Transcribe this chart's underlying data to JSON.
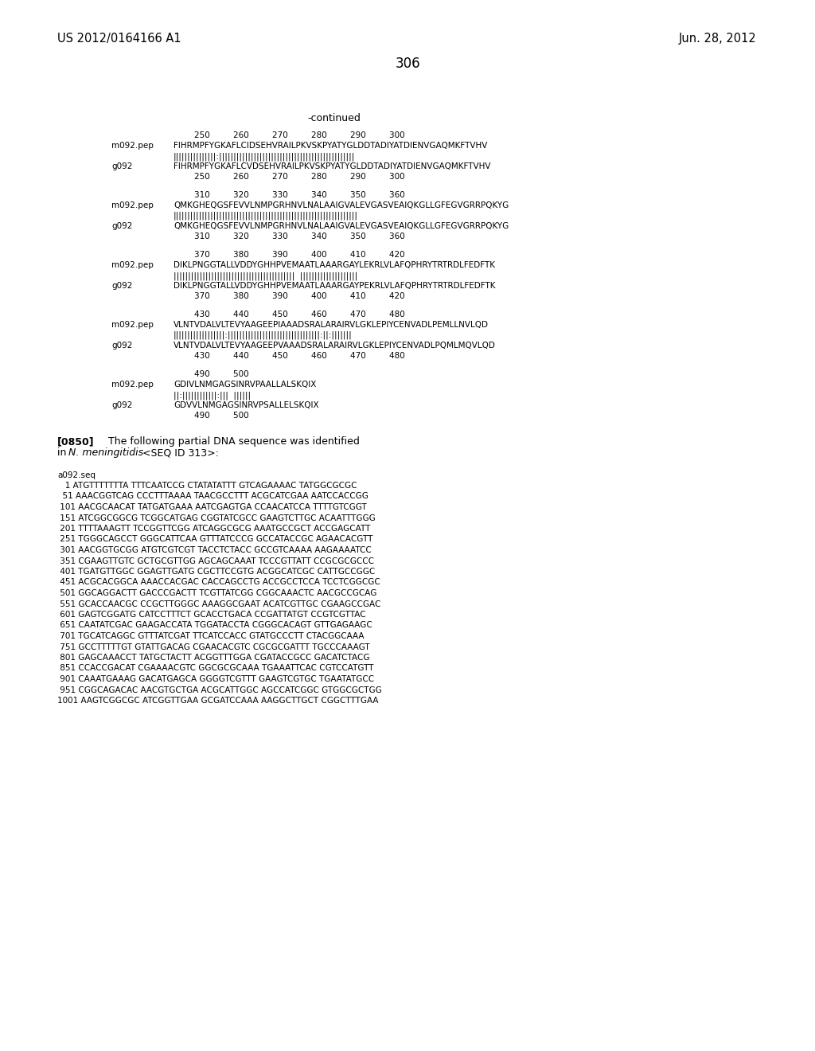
{
  "background_color": "#ffffff",
  "header_left": "US 2012/0164166 A1",
  "header_right": "Jun. 28, 2012",
  "page_number": "306",
  "continued_label": "-continued",
  "alignment_blocks": [
    {
      "numbers_top": "        250         260         270         280         290         300",
      "seq1_label": "m092.pep",
      "seq1": "FIHRMPFYGKAFLCIDSEHVRAILPKVSKPYATYGLDDTADIYATDIENVGAQMKFTVHV",
      "match": "|||||||||||||||:|||||||||||||||||||||||||||||||||||||||||||||||",
      "seq2_label": "g092",
      "seq2": "FIHRMPFYGKAFLCVDSEHVRAILPKVSKPYATYGLDDTADIYATDIENVGAQMKFTVHV",
      "numbers_bot": "        250         260         270         280         290         300"
    },
    {
      "numbers_top": "        310         320         330         340         350         360",
      "seq1_label": "m092.pep",
      "seq1": "QMKGHEQGSFEVVLNMPGRHNVLNALAAIGVALEVGASVEAIQKGLLGFEGVGRRPQKYG",
      "match": "||||||||||||||||||||||||||||||||||||||||||||||||||||||||||||||||",
      "seq2_label": "g092",
      "seq2": "QMKGHEQGSFEVVLNMPGRHNVLNALAAIGVALEVGASVEAIQKGLLGFEGVGRRPQKYG",
      "numbers_bot": "        310         320         330         340         350         360"
    },
    {
      "numbers_top": "        370         380         390         400         410         420",
      "seq1_label": "m092.pep",
      "seq1": "DIKLPNGGTALLVDDYGHHPVEMAATLAAARGAYLEKRLVLAFQPHRYTRTRDLFEDFTK",
      "match": "||||||||||||||||||||||||||||||||||||||||||  ||||||||||||||||||||",
      "seq2_label": "g092",
      "seq2": "DIKLPNGGTALLVDDYGHHPVEMAATLAAARGAYPEKRLVLAFQPHRYTRTRDLFEDFTK",
      "numbers_bot": "        370         380         390         400         410         420"
    },
    {
      "numbers_top": "        430         440         450         460         470         480",
      "seq1_label": "m092.pep",
      "seq1": "VLNTVDALVLTEVYAAGEEPIAAADSRALARAIRVLGKLEPIYCENVADLPEMLLNVLQD",
      "match": "||||||||||||||||||:||||||||||||||||||||||||||||||||:||:|||||||",
      "seq2_label": "g092",
      "seq2": "VLNTVDALVLTEVYAAGEEPVAAADSRALARAIRVLGKLEPIYCENVADLPQMLMQVLQD",
      "numbers_bot": "        430         440         450         460         470         480"
    },
    {
      "numbers_top": "        490         500",
      "seq1_label": "m092.pep",
      "seq1": "GDIVLNMGAGSINRVPAALLALSKQIX",
      "match": "||:||||||||||||:|||  ||||||",
      "seq2_label": "g092",
      "seq2": "GDVVLNMGAGSINRVPSALLELSKQIX",
      "numbers_bot": "        490         500"
    }
  ],
  "paragraph_label": "[0850]",
  "paragraph_text1": "    The following partial DNA sequence was identified",
  "paragraph_text2_pre": "in ",
  "paragraph_italic": "N. meningitidis",
  "paragraph_text2_post": " <SEQ ID 313>:",
  "dna_label": "a092.seq",
  "dna_lines": [
    "   1 ATGTTTTTTTA TTTCAATCCG CTATATATTT GTCAGAAAAC TATGGCGCGC",
    "  51 AAACGGTCAG CCCTTTAAAA TAACGCCTTT ACGCATCGAA AATCCACCGG",
    " 101 AACGCAACAT TATGATGAAA AATCGAGTGA CCAACATCCA TTTTGTCGGT",
    " 151 ATCGGCGGCG TCGGCATGAG CGGTATCGCC GAAGTCTTGC ACAATTTGGG",
    " 201 TTTTAAAGTT TCCGGTTCGG ATCAGGCGCG AAATGCCGCT ACCGAGCATT",
    " 251 TGGGCAGCCT GGGCATTCAA GTTTATCCCG GCCATACCGC AGAACACGTT",
    " 301 AACGGTGCGG ATGTCGTCGT TACCTCTACC GCCGTCAAAA AAGAAAATCC",
    " 351 CGAAGTTGTC GCTGCGTTGG AGCAGCAAAT TCCCGTTATT CCGCGCGCCC",
    " 401 TGATGTTGGC GGAGTTGATG CGCTTCCGTG ACGGCATCGC CATTGCCGGC",
    " 451 ACGCACGGCA AAACCACGAC CACCAGCCTG ACCGCCTCCA TCCTCGGCGC",
    " 501 GGCAGGACTT GACCCGACTT TCGTTATCGG CGGCAAACTC AACGCCGCAG",
    " 551 GCACCAACGC CCGCTTGGGC AAAGGCGAAT ACATCGTTGC CGAAGCCGAC",
    " 601 GAGTCGGATG CATCCTTTCT GCACCTGACA CCGATTATGT CCGTCGTTAC",
    " 651 CAATATCGAC GAAGACCATA TGGATACCTA CGGGCACAGT GTTGAGAAGC",
    " 701 TGCATCAGGC GTTTATCGAT TTCATCCACC GTATGCCCTT CTACGGCAAA",
    " 751 GCCTTTTTGT GTATTGACAG CGAACACGTC CGCGCGATTT TGCCCAAAGT",
    " 801 GAGCAAACCT TATGCTACTT ACGGTTTGGA CGATACCGCC GACATCTACG",
    " 851 CCACCGACAT CGAAAACGTC GGCGCGCAAA TGAAATTCAC CGTCCATGTT",
    " 901 CAAATGAAAG GACATGAGCA GGGGTCGTTT GAAGTCGTGC TGAATATGCC",
    " 951 CGGCAGACAC AACGTGCTGA ACGCATTGGC AGCCATCGGC GTGGCGCTGG",
    "1001 AAGTCGGCGC ATCGGTTGAA GCGATCCAAA AAGGCTTGCT CGGCTTTGAA"
  ]
}
